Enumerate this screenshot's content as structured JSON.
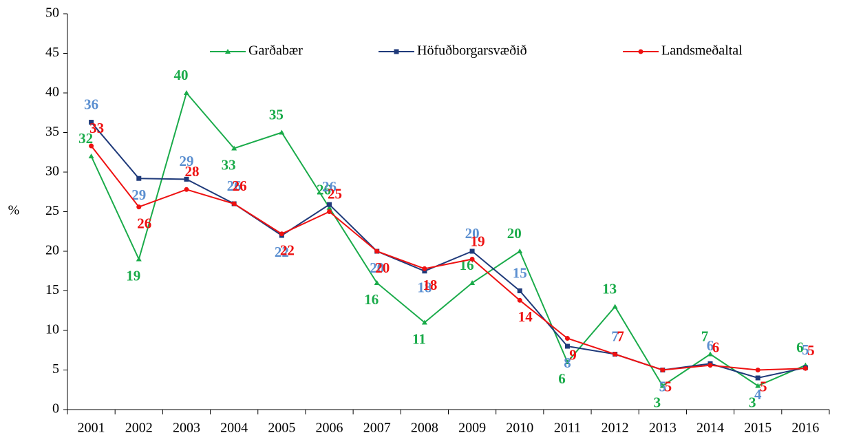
{
  "chart_data": {
    "type": "line",
    "y_label": "%",
    "categories": [
      "2001",
      "2002",
      "2003",
      "2004",
      "2005",
      "2006",
      "2007",
      "2008",
      "2009",
      "2010",
      "2011",
      "2012",
      "2013",
      "2014",
      "2015",
      "2016"
    ],
    "series": [
      {
        "name": "Garðabær",
        "color": "#1aab4a",
        "marker": "triangle",
        "values": [
          32,
          19,
          40,
          33,
          35,
          25.5,
          16,
          11,
          16,
          20,
          6,
          13,
          3,
          7,
          3,
          5.6
        ],
        "value_labels": [
          "32",
          "19",
          "40",
          "33",
          "35",
          "26",
          "16",
          "11",
          "16",
          "20",
          "6",
          "13",
          "3",
          "7",
          "3",
          "6"
        ]
      },
      {
        "name": "Höfuðborgarsvæðið",
        "color": "#1f3a7a",
        "label_color": "#5b8fd0",
        "marker": "square",
        "values": [
          36.3,
          29.2,
          29.1,
          26,
          22,
          25.9,
          20,
          17.5,
          20,
          15,
          8,
          7,
          5,
          5.8,
          4,
          5.3
        ],
        "value_labels": [
          "36",
          "29",
          "29",
          "26",
          "22",
          "26",
          "20",
          "18",
          "20",
          "15",
          "8",
          "7",
          "5",
          "6",
          "4",
          "5"
        ]
      },
      {
        "name": "Landsmeðaltal",
        "color": "#ee1111",
        "marker": "circle",
        "values": [
          33.3,
          25.6,
          27.8,
          26,
          22.2,
          25,
          20,
          17.8,
          19,
          13.8,
          9,
          7,
          5,
          5.6,
          5,
          5.2
        ],
        "value_labels": [
          "33",
          "26",
          "28",
          "26",
          "22",
          "25",
          "20",
          "18",
          "19",
          "14",
          "9",
          "7",
          "5",
          "6",
          "5",
          "5"
        ]
      }
    ],
    "ylim": [
      0,
      50
    ],
    "yticks": [
      0,
      5,
      10,
      15,
      20,
      25,
      30,
      35,
      40,
      45,
      50
    ],
    "grid": false,
    "legend": "top"
  }
}
